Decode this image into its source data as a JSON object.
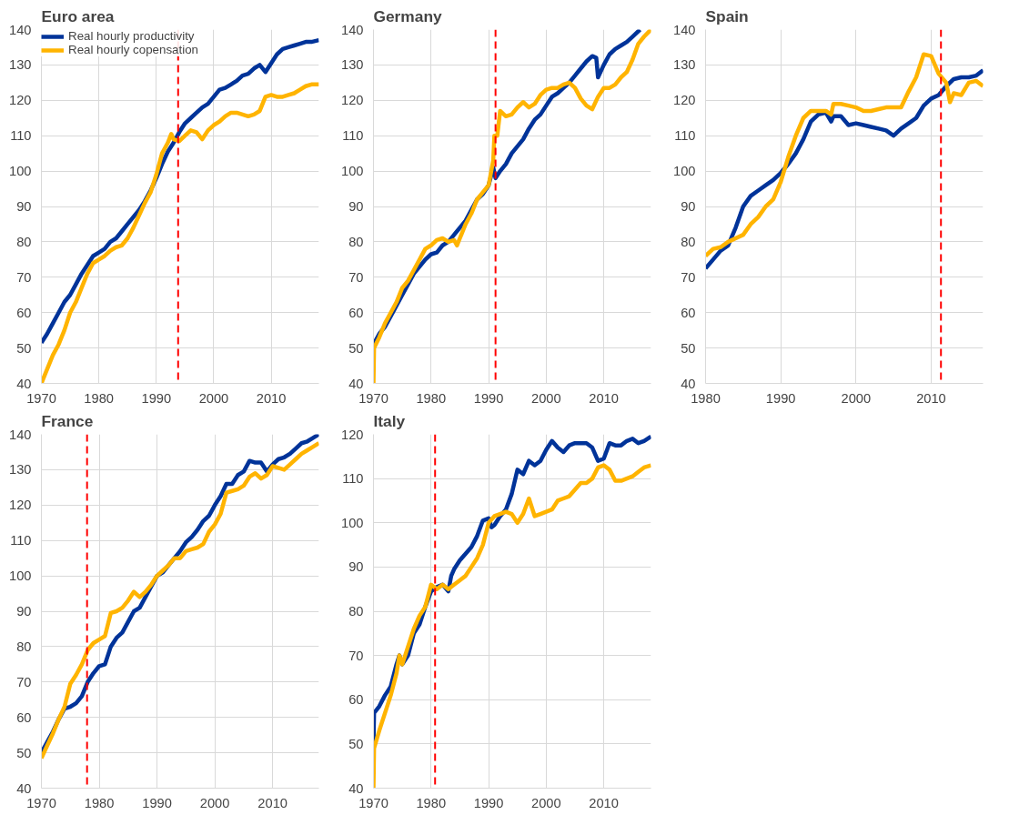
{
  "chart_data": [
    {
      "type": "line",
      "title": "Euro area",
      "legend": "top left",
      "grid": true,
      "xlim": [
        1970,
        2018.3
      ],
      "xticks": [
        1970,
        1980,
        1990,
        2000,
        2010
      ],
      "ylim": [
        40,
        140
      ],
      "yticks": [
        40,
        50,
        60,
        70,
        80,
        90,
        100,
        110,
        120,
        130,
        140
      ],
      "ref_lines": [
        {
          "axis": "x",
          "value": 1993.8,
          "color": "#ff0000",
          "line_style": "dashed"
        }
      ],
      "series": [
        {
          "name": "Real hourly productivity",
          "color": "#003399",
          "x": [
            1970,
            1971,
            1972,
            1973,
            1974,
            1975,
            1976,
            1977,
            1978,
            1979,
            1980,
            1981,
            1982,
            1983,
            1984,
            1985,
            1986,
            1987,
            1988,
            1989,
            1990,
            1991,
            1992,
            1993,
            1994,
            1995,
            1996,
            1997,
            1998,
            1999,
            2000,
            2001,
            2002,
            2003,
            2004,
            2005,
            2006,
            2007,
            2008,
            2009,
            2010,
            2011,
            2012,
            2013,
            2014,
            2015,
            2016,
            2017,
            2018.3
          ],
          "values": [
            51.5,
            54,
            57,
            60,
            63,
            65,
            68,
            71,
            73.5,
            76,
            77,
            78,
            80,
            81,
            83,
            85,
            87,
            89,
            91.5,
            94.5,
            98,
            102,
            105.5,
            108,
            111,
            113.5,
            115,
            116.5,
            118,
            119,
            121,
            123,
            123.5,
            124.5,
            125.5,
            127,
            127.5,
            129,
            130,
            128,
            130.5,
            133,
            134.5,
            135,
            135.5,
            136,
            136.5,
            136.5,
            137
          ]
        },
        {
          "name": "Real hourly copensation",
          "color": "#ffb400",
          "x": [
            1970,
            1971,
            1972,
            1973,
            1974,
            1975,
            1976,
            1977,
            1978,
            1979,
            1980,
            1981,
            1982,
            1983,
            1984,
            1985,
            1986,
            1987,
            1988,
            1989,
            1990,
            1991,
            1992,
            1992.6,
            1993,
            1994,
            1995,
            1996,
            1997,
            1998,
            1999,
            2000,
            2001,
            2002,
            2003,
            2004,
            2005,
            2006,
            2007,
            2008,
            2009,
            2010,
            2011,
            2012,
            2013,
            2014,
            2015,
            2016,
            2017,
            2018.3
          ],
          "values": [
            40,
            44,
            48,
            51,
            55,
            60,
            63,
            67,
            71,
            74,
            75,
            76,
            77.5,
            78.5,
            79,
            81,
            84,
            87.5,
            91,
            94,
            99,
            105,
            108,
            110.5,
            109,
            108.5,
            110,
            111.5,
            111,
            109,
            111.5,
            113,
            114,
            115.5,
            116.5,
            116.5,
            116,
            115.5,
            116,
            117,
            121,
            121.5,
            121,
            121,
            121.5,
            122,
            123,
            124,
            124.5,
            124.5
          ]
        }
      ]
    },
    {
      "type": "line",
      "title": "Germany",
      "grid": true,
      "xlim": [
        1970,
        2018.2
      ],
      "xticks": [
        1970,
        1980,
        1990,
        2000,
        2010
      ],
      "ylim": [
        40,
        140
      ],
      "yticks": [
        40,
        50,
        60,
        70,
        80,
        90,
        100,
        110,
        120,
        130,
        140
      ],
      "ref_lines": [
        {
          "axis": "x",
          "value": 1991.2,
          "color": "#ff0000",
          "line_style": "dashed"
        }
      ],
      "series": [
        {
          "color": "#003399",
          "x": [
            1970,
            1971,
            1972,
            1973,
            1974,
            1975,
            1976,
            1977,
            1978,
            1979,
            1980,
            1981,
            1982,
            1983,
            1984,
            1985,
            1986,
            1987,
            1988,
            1989,
            1990,
            1990.8,
            1991.2,
            1992,
            1993,
            1994,
            1995,
            1996,
            1997,
            1998,
            1999,
            2000,
            2001,
            2002,
            2003,
            2004,
            2005,
            2006,
            2007,
            2008,
            2008.7,
            2009,
            2010,
            2011,
            2012,
            2013,
            2014,
            2015,
            2016.3
          ],
          "values": [
            51,
            54,
            56,
            59,
            62,
            65,
            68,
            71,
            73,
            75,
            76.5,
            77,
            79,
            80,
            82,
            84,
            86,
            89,
            92,
            93.5,
            96,
            101,
            98,
            100,
            102,
            105,
            107,
            109,
            112,
            114.5,
            116,
            118.5,
            121,
            122,
            123.5,
            125,
            127,
            129,
            131,
            132.5,
            132,
            126.5,
            130,
            133,
            134.5,
            135.5,
            136.5,
            138,
            140
          ]
        },
        {
          "color": "#ffb400",
          "x": [
            1970,
            1970.1,
            1971,
            1972,
            1973,
            1974,
            1975,
            1976,
            1977,
            1978,
            1979,
            1980,
            1981,
            1982,
            1983,
            1984,
            1984.5,
            1985,
            1986,
            1987,
            1988,
            1989,
            1990,
            1990.8,
            1991,
            1991.5,
            1992,
            1993,
            1994,
            1995,
            1996,
            1997,
            1998,
            1999,
            2000,
            2001,
            2002,
            2003,
            2004,
            2005,
            2006,
            2007,
            2008,
            2009,
            2010,
            2011,
            2012,
            2013,
            2014,
            2015,
            2016,
            2017,
            2018.2
          ],
          "values": [
            40,
            50,
            53,
            57,
            60,
            63,
            67,
            69,
            72,
            75,
            78,
            79,
            80.5,
            81,
            80,
            80.5,
            79,
            81,
            85,
            88,
            92,
            94,
            96,
            103,
            110,
            110,
            117,
            115.5,
            116,
            118,
            119.5,
            118,
            119,
            121.5,
            123,
            123.5,
            123.5,
            124.5,
            125,
            123.5,
            120.5,
            118.5,
            117.5,
            121,
            123.5,
            123.5,
            124.5,
            126.5,
            128,
            131.5,
            136,
            138,
            140
          ]
        }
      ]
    },
    {
      "type": "line",
      "title": "Spain",
      "grid": true,
      "xlim": [
        1980,
        2016.9
      ],
      "xticks": [
        1980,
        1990,
        2000,
        2010
      ],
      "ylim": [
        40,
        140
      ],
      "yticks": [
        40,
        50,
        60,
        70,
        80,
        90,
        100,
        110,
        120,
        130,
        140
      ],
      "ref_lines": [
        {
          "axis": "x",
          "value": 2011.3,
          "color": "#ff0000",
          "line_style": "dashed"
        }
      ],
      "series": [
        {
          "color": "#003399",
          "x": [
            1980,
            1981,
            1982,
            1983,
            1984,
            1985,
            1986,
            1987,
            1988,
            1989,
            1990,
            1991,
            1992,
            1993,
            1994,
            1995,
            1996,
            1996.7,
            1997,
            1998,
            1999,
            2000,
            2001,
            2002,
            2003,
            2004,
            2005,
            2006,
            2007,
            2008,
            2009,
            2010,
            2011,
            2012,
            2013,
            2014,
            2015,
            2016,
            2016.9
          ],
          "values": [
            72.5,
            75,
            77.5,
            79,
            84,
            90,
            93,
            94.5,
            96,
            97.5,
            99.5,
            102,
            105,
            109,
            114,
            116,
            116.5,
            114,
            115.5,
            115.5,
            113,
            113.5,
            113,
            112.5,
            112,
            111.5,
            110,
            112,
            113.5,
            115,
            118.5,
            120.5,
            121.5,
            124,
            126,
            126.5,
            126.5,
            127,
            128.5
          ]
        },
        {
          "color": "#ffb400",
          "x": [
            1980,
            1981,
            1982,
            1983,
            1984,
            1985,
            1986,
            1987,
            1988,
            1989,
            1990,
            1991,
            1992,
            1993,
            1994,
            1995,
            1996,
            1996.7,
            1997,
            1998,
            1999,
            2000,
            2001,
            2002,
            2003,
            2004,
            2005,
            2006,
            2007,
            2008,
            2009,
            2010,
            2010.7,
            2011,
            2012,
            2012.5,
            2013,
            2014,
            2015,
            2016,
            2016.9
          ],
          "values": [
            76,
            78,
            78.5,
            80,
            81,
            82,
            85,
            87,
            90,
            92,
            97,
            104,
            110,
            115,
            117,
            117,
            117,
            116,
            119,
            119,
            118.5,
            118,
            117,
            117,
            117.5,
            118,
            118,
            118,
            122.5,
            126.5,
            133,
            132.5,
            129,
            127.5,
            125,
            119.5,
            122,
            121.5,
            125,
            125.5,
            124
          ]
        }
      ]
    },
    {
      "type": "line",
      "title": "France",
      "grid": true,
      "xlim": [
        1970,
        2018
      ],
      "xticks": [
        1970,
        1980,
        1990,
        2000,
        2010
      ],
      "ylim": [
        40,
        140
      ],
      "yticks": [
        40,
        50,
        60,
        70,
        80,
        90,
        100,
        110,
        120,
        130,
        140
      ],
      "ref_lines": [
        {
          "axis": "x",
          "value": 1977.9,
          "color": "#ff0000",
          "line_style": "dashed"
        }
      ],
      "series": [
        {
          "color": "#003399",
          "x": [
            1970,
            1971,
            1972,
            1973,
            1974,
            1975,
            1976,
            1977,
            1978,
            1979,
            1980,
            1981,
            1982,
            1983,
            1984,
            1985,
            1986,
            1987,
            1988,
            1989,
            1990,
            1991,
            1992,
            1993,
            1994,
            1995,
            1996,
            1997,
            1998,
            1999,
            2000,
            2001,
            2002,
            2003,
            2004,
            2005,
            2006,
            2007,
            2008,
            2009,
            2010,
            2011,
            2012,
            2013,
            2014,
            2015,
            2016,
            2017,
            2018
          ],
          "values": [
            50,
            53,
            56,
            59.5,
            62.5,
            63,
            64,
            66,
            70,
            72.5,
            74.5,
            75,
            80,
            82.5,
            84,
            87,
            90,
            91,
            94,
            97,
            100,
            101,
            103,
            105,
            107,
            109.5,
            111,
            113,
            115.5,
            117,
            120,
            122.5,
            126,
            126,
            128.5,
            129.5,
            132.5,
            132,
            132,
            129.5,
            131.5,
            133,
            133.5,
            134.5,
            136,
            137.5,
            138,
            139,
            140
          ]
        },
        {
          "color": "#ffb400",
          "x": [
            1970,
            1971,
            1972,
            1973,
            1974,
            1975,
            1976,
            1977,
            1978,
            1979,
            1980,
            1981,
            1982,
            1983,
            1984,
            1985,
            1986,
            1987,
            1988,
            1989,
            1990,
            1991,
            1992,
            1993,
            1994,
            1995,
            1996,
            1997,
            1998,
            1999,
            2000,
            2001,
            2002,
            2003,
            2004,
            2005,
            2006,
            2007,
            2008,
            2009,
            2010,
            2011,
            2012,
            2013,
            2014,
            2015,
            2016,
            2017,
            2018
          ],
          "values": [
            48.5,
            52,
            55.5,
            59.5,
            63,
            69.5,
            72,
            75,
            79,
            81,
            82,
            83,
            89.5,
            90,
            91,
            93,
            95.5,
            94,
            95.5,
            97.5,
            100,
            101.5,
            103,
            105,
            105,
            107,
            107.5,
            108,
            109,
            112.5,
            114.5,
            117.5,
            123.5,
            124,
            124.5,
            125.5,
            128,
            129,
            127.5,
            128.5,
            131,
            130.5,
            130,
            131.5,
            133,
            134.5,
            135.5,
            136.5,
            137.5
          ]
        }
      ]
    },
    {
      "type": "line",
      "title": "Italy",
      "grid": true,
      "xlim": [
        1970,
        2018.2
      ],
      "xticks": [
        1970,
        1980,
        1990,
        2000,
        2010
      ],
      "ylim": [
        40,
        120
      ],
      "yticks": [
        40,
        50,
        60,
        70,
        80,
        90,
        100,
        110,
        120
      ],
      "ref_lines": [
        {
          "axis": "x",
          "value": 1980.7,
          "color": "#ff0000",
          "line_style": "dashed"
        }
      ],
      "series": [
        {
          "color": "#003399",
          "x": [
            1970,
            1970.1,
            1971,
            1972,
            1973,
            1974,
            1974.5,
            1975,
            1976,
            1977,
            1978,
            1979,
            1980,
            1981,
            1982,
            1983,
            1983.5,
            1984,
            1985,
            1986,
            1987,
            1988,
            1989,
            1990,
            1990.5,
            1991,
            1992,
            1993,
            1994,
            1995,
            1996,
            1997,
            1998,
            1999,
            2000,
            2001,
            2002,
            2003,
            2004,
            2005,
            2006,
            2007,
            2008,
            2009,
            2010,
            2011,
            2012,
            2013,
            2014,
            2015,
            2016,
            2017,
            2018.2
          ],
          "values": [
            50,
            57,
            58.5,
            61,
            63,
            68,
            70,
            68,
            70,
            75,
            77,
            81,
            84.5,
            85.5,
            86,
            84.5,
            88,
            89.5,
            91.5,
            93,
            94.5,
            97,
            100.5,
            101,
            99,
            99.5,
            101.5,
            103,
            106.5,
            112,
            111,
            114,
            113,
            114,
            116.5,
            118.5,
            117,
            116,
            117.5,
            118,
            118,
            118,
            117,
            114,
            114.5,
            118,
            117.5,
            117.5,
            118.5,
            119,
            118,
            118.5,
            119.5
          ]
        },
        {
          "color": "#ffb400",
          "x": [
            1970,
            1970.1,
            1971,
            1972,
            1973,
            1974,
            1974.5,
            1975,
            1976,
            1977,
            1978,
            1979,
            1980,
            1981,
            1982,
            1983,
            1984,
            1985,
            1986,
            1987,
            1988,
            1989,
            1990,
            1991,
            1992,
            1993,
            1994,
            1995,
            1996,
            1997,
            1998,
            1999,
            2000,
            2001,
            2002,
            2003,
            2004,
            2005,
            2006,
            2007,
            2008,
            2009,
            2010,
            2011,
            2012,
            2013,
            2014,
            2015,
            2016,
            2017,
            2018.2
          ],
          "values": [
            40,
            49,
            53,
            57,
            61,
            66,
            70,
            68,
            72,
            76,
            79,
            81,
            86,
            85,
            86,
            85,
            86,
            87,
            88,
            90,
            92,
            95,
            100,
            101.5,
            102,
            102.5,
            102,
            100,
            102,
            105.5,
            101.5,
            102,
            102.5,
            103,
            105,
            105.5,
            106,
            107.5,
            109,
            109,
            110,
            112.5,
            113,
            112,
            109.5,
            109.5,
            110,
            110.5,
            111.5,
            112.5,
            113
          ]
        }
      ]
    }
  ]
}
